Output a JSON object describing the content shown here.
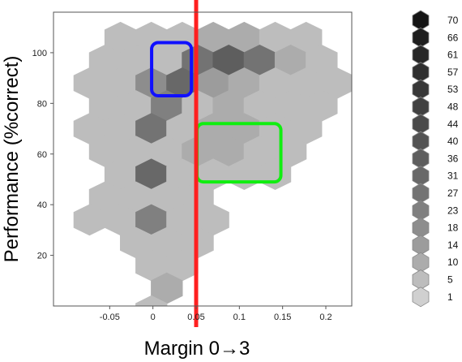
{
  "chart_data": {
    "type": "hexbin",
    "title": "",
    "xlabel": "Margin 0→3",
    "ylabel": "Performance (%correct)",
    "xlim": [
      -0.115,
      0.23
    ],
    "ylim": [
      0,
      116
    ],
    "x_ticks": [
      -0.05,
      0,
      0.05,
      0.1,
      0.15,
      0.2
    ],
    "x_tick_labels": [
      "-0.05",
      "0",
      "0.05",
      "0.1",
      "0.15",
      "0.2"
    ],
    "y_ticks": [
      20,
      40,
      60,
      80,
      100
    ],
    "y_tick_labels": [
      "20",
      "40",
      "60",
      "80",
      "100"
    ],
    "grid": false,
    "legend_position": "right",
    "legend": {
      "counts": [
        70,
        66,
        61,
        57,
        53,
        48,
        44,
        40,
        36,
        31,
        27,
        23,
        18,
        14,
        10,
        5,
        1
      ],
      "colors": [
        "#151515",
        "#1e1e1e",
        "#272727",
        "#2f2f2f",
        "#383838",
        "#414141",
        "#4a4a4a",
        "#535353",
        "#5e5e5e",
        "#686868",
        "#737373",
        "#808080",
        "#8d8d8d",
        "#9c9c9c",
        "#acacac",
        "#bdbdbd",
        "#d0d0d0"
      ]
    },
    "vline": {
      "x": 0.05,
      "color": "#ff2020"
    },
    "highlight_boxes": [
      {
        "color": "#1010ff",
        "x": [
          -0.0015,
          0.0445
        ],
        "y": [
          83,
          104
        ]
      },
      {
        "color": "#10ee10",
        "x": [
          0.051,
          0.148
        ],
        "y": [
          49,
          72
        ]
      }
    ],
    "hex_size": {
      "dx": 0.0358,
      "dy": 9.0
    },
    "hexes": [
      {
        "x": -0.0376,
        "y": 106,
        "count": 3
      },
      {
        "x": -0.0018,
        "y": 106,
        "count": 3
      },
      {
        "x": 0.034,
        "y": 106,
        "count": 4
      },
      {
        "x": 0.0698,
        "y": 106,
        "count": 8
      },
      {
        "x": 0.1056,
        "y": 106,
        "count": 10
      },
      {
        "x": 0.1414,
        "y": 106,
        "count": 6
      },
      {
        "x": 0.1772,
        "y": 106,
        "count": 3
      },
      {
        "x": -0.0555,
        "y": 97,
        "count": 3
      },
      {
        "x": -0.0197,
        "y": 97,
        "count": 6
      },
      {
        "x": 0.0161,
        "y": 97,
        "count": 6
      },
      {
        "x": 0.0519,
        "y": 97,
        "count": 27
      },
      {
        "x": 0.0877,
        "y": 97,
        "count": 36
      },
      {
        "x": 0.1235,
        "y": 97,
        "count": 27
      },
      {
        "x": 0.1593,
        "y": 97,
        "count": 8
      },
      {
        "x": 0.1951,
        "y": 97,
        "count": 4
      },
      {
        "x": -0.0734,
        "y": 88,
        "count": 3
      },
      {
        "x": -0.0376,
        "y": 88,
        "count": 5
      },
      {
        "x": -0.0018,
        "y": 88,
        "count": 18
      },
      {
        "x": 0.034,
        "y": 88,
        "count": 31
      },
      {
        "x": 0.0698,
        "y": 88,
        "count": 14
      },
      {
        "x": 0.1056,
        "y": 88,
        "count": 10
      },
      {
        "x": 0.1414,
        "y": 88,
        "count": 6
      },
      {
        "x": 0.1772,
        "y": 88,
        "count": 6
      },
      {
        "x": 0.213,
        "y": 88,
        "count": 3
      },
      {
        "x": -0.0555,
        "y": 79,
        "count": 3
      },
      {
        "x": -0.0197,
        "y": 79,
        "count": 5
      },
      {
        "x": 0.0161,
        "y": 79,
        "count": 23
      },
      {
        "x": 0.0519,
        "y": 79,
        "count": 5
      },
      {
        "x": 0.0877,
        "y": 79,
        "count": 8
      },
      {
        "x": 0.1235,
        "y": 79,
        "count": 6
      },
      {
        "x": 0.1593,
        "y": 79,
        "count": 5
      },
      {
        "x": 0.1951,
        "y": 79,
        "count": 3
      },
      {
        "x": -0.0734,
        "y": 70,
        "count": 3
      },
      {
        "x": -0.0376,
        "y": 70,
        "count": 4
      },
      {
        "x": -0.0018,
        "y": 70,
        "count": 27
      },
      {
        "x": 0.034,
        "y": 70,
        "count": 5
      },
      {
        "x": 0.0698,
        "y": 70,
        "count": 10
      },
      {
        "x": 0.1056,
        "y": 70,
        "count": 10
      },
      {
        "x": 0.1414,
        "y": 70,
        "count": 6
      },
      {
        "x": 0.1772,
        "y": 70,
        "count": 3
      },
      {
        "x": -0.0555,
        "y": 61,
        "count": 3
      },
      {
        "x": -0.0197,
        "y": 61,
        "count": 4
      },
      {
        "x": 0.0161,
        "y": 61,
        "count": 5
      },
      {
        "x": 0.0519,
        "y": 61,
        "count": 8
      },
      {
        "x": 0.0877,
        "y": 61,
        "count": 8
      },
      {
        "x": 0.1235,
        "y": 61,
        "count": 6
      },
      {
        "x": 0.1593,
        "y": 61,
        "count": 3
      },
      {
        "x": -0.0376,
        "y": 52,
        "count": 4
      },
      {
        "x": -0.0018,
        "y": 52,
        "count": 31
      },
      {
        "x": 0.034,
        "y": 52,
        "count": 4
      },
      {
        "x": 0.0698,
        "y": 52,
        "count": 5
      },
      {
        "x": 0.1056,
        "y": 52,
        "count": 5
      },
      {
        "x": 0.1414,
        "y": 52,
        "count": 3
      },
      {
        "x": -0.0555,
        "y": 43,
        "count": 3
      },
      {
        "x": -0.0197,
        "y": 43,
        "count": 4
      },
      {
        "x": 0.0161,
        "y": 43,
        "count": 5
      },
      {
        "x": 0.0519,
        "y": 43,
        "count": 4
      },
      {
        "x": -0.0734,
        "y": 34,
        "count": 3
      },
      {
        "x": -0.0376,
        "y": 34,
        "count": 4
      },
      {
        "x": -0.0018,
        "y": 34,
        "count": 23
      },
      {
        "x": 0.034,
        "y": 34,
        "count": 3
      },
      {
        "x": 0.0698,
        "y": 34,
        "count": 3
      },
      {
        "x": -0.0197,
        "y": 25,
        "count": 3
      },
      {
        "x": 0.0161,
        "y": 25,
        "count": 4
      },
      {
        "x": 0.0519,
        "y": 25,
        "count": 3
      },
      {
        "x": -0.0018,
        "y": 16,
        "count": 4
      },
      {
        "x": 0.034,
        "y": 16,
        "count": 3
      },
      {
        "x": 0.0161,
        "y": 7,
        "count": 10
      },
      {
        "x": -0.0018,
        "y": -2,
        "count": 3
      }
    ]
  }
}
